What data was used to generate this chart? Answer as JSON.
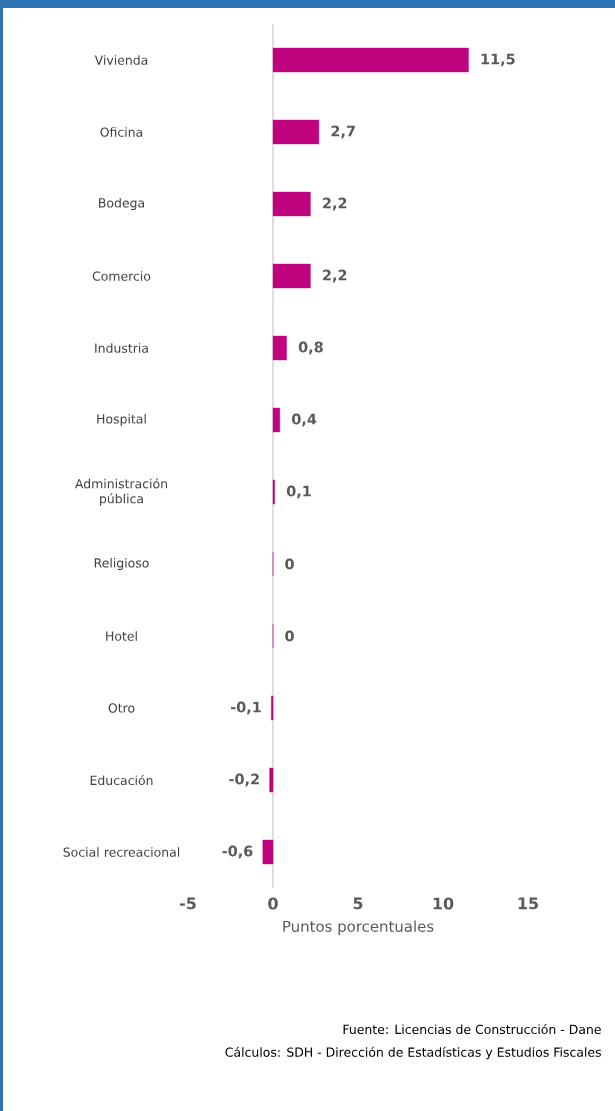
{
  "chart_data": {
    "type": "bar",
    "orientation": "horizontal",
    "categories": [
      "Vivienda",
      "Oficina",
      "Bodega",
      "Comercio",
      "Industria",
      "Hospital",
      "Administración pública",
      "Religioso",
      "Hotel",
      "Otro",
      "Educación",
      "Social recreacional"
    ],
    "values": [
      11.5,
      2.7,
      2.2,
      2.2,
      0.8,
      0.4,
      0.1,
      0,
      0,
      -0.1,
      -0.2,
      -0.6
    ],
    "value_labels": [
      "11,5",
      "2,7",
      "2,2",
      "2,2",
      "0,8",
      "0,4",
      "0,1",
      "0",
      "0",
      "-0,1",
      "-0,2",
      "-0,6"
    ],
    "color": "#c0047f",
    "xlim": [
      -5,
      15
    ],
    "xticks": [
      -5,
      0,
      5,
      10,
      15
    ],
    "xlabel": "Puntos porcentuales",
    "annotations": [
      "Fuente: Licencias de Construcción - Dane",
      "Cálculos: SDH - Dirección de Estadísticas y Estudios Fiscales"
    ]
  }
}
